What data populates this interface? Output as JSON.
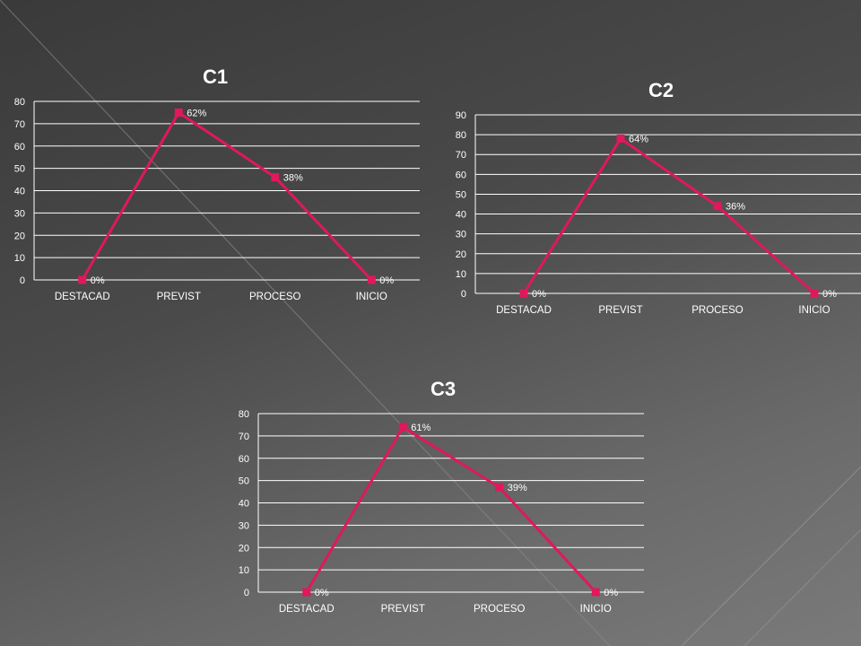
{
  "chart_data": [
    {
      "type": "line",
      "title": "C1",
      "categories": [
        "DESTACAD",
        "PREVIST",
        "PROCESO",
        "INICIO"
      ],
      "values": [
        0,
        75,
        46,
        0
      ],
      "data_labels": [
        "0%",
        "62%",
        "38%",
        "0%"
      ],
      "ylim": [
        0,
        80
      ],
      "yticks": [
        0,
        10,
        20,
        30,
        40,
        50,
        60,
        70,
        80
      ],
      "grid": true,
      "series_color": "#e0185c"
    },
    {
      "type": "line",
      "title": "C2",
      "categories": [
        "DESTACAD",
        "PREVIST",
        "PROCESO",
        "INICIO"
      ],
      "values": [
        0,
        78,
        44,
        0
      ],
      "data_labels": [
        "0%",
        "64%",
        "36%",
        "0%"
      ],
      "ylim": [
        0,
        90
      ],
      "yticks": [
        0,
        10,
        20,
        30,
        40,
        50,
        60,
        70,
        80,
        90
      ],
      "grid": true,
      "series_color": "#e0185c"
    },
    {
      "type": "line",
      "title": "C3",
      "categories": [
        "DESTACAD",
        "PREVIST",
        "PROCESO",
        "INICIO"
      ],
      "values": [
        0,
        74,
        47,
        0
      ],
      "data_labels": [
        "0%",
        "61%",
        "39%",
        "0%"
      ],
      "ylim": [
        0,
        80
      ],
      "yticks": [
        0,
        10,
        20,
        30,
        40,
        50,
        60,
        70,
        80
      ],
      "grid": true,
      "series_color": "#e0185c"
    }
  ]
}
